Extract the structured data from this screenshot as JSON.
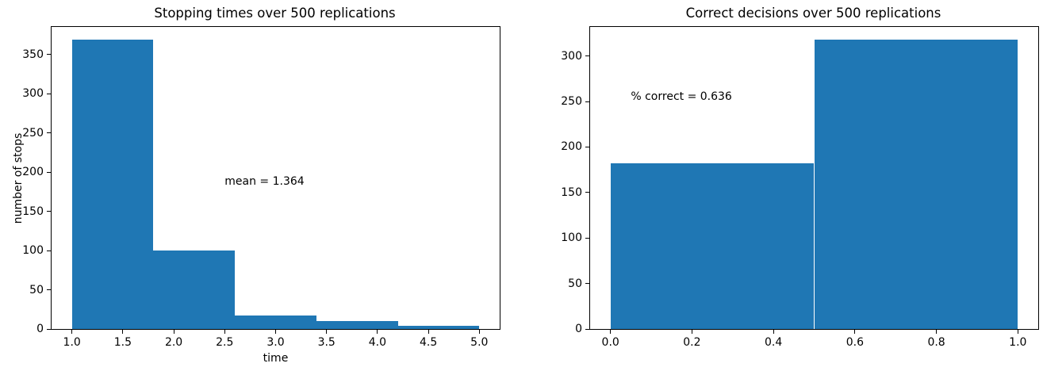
{
  "figure": {
    "background": "#ffffff",
    "bar_color": "#1f77b4",
    "text_color": "#000000",
    "axis_color": "#000000"
  },
  "chart_data": [
    {
      "type": "bar",
      "subtype": "histogram",
      "title": "Stopping times over 500 replications",
      "xlabel": "time",
      "ylabel": "number of stops",
      "bin_edges": [
        1.0,
        1.8,
        2.6,
        3.4,
        4.2,
        5.0
      ],
      "counts": [
        369,
        100,
        17,
        10,
        4
      ],
      "xlim": [
        0.8,
        5.2
      ],
      "ylim": [
        0,
        385
      ],
      "xtick_values": [
        1.0,
        1.5,
        2.0,
        2.5,
        3.0,
        3.5,
        4.0,
        4.5,
        5.0
      ],
      "xtick_labels": [
        "1.0",
        "1.5",
        "2.0",
        "2.5",
        "3.0",
        "3.5",
        "4.0",
        "4.5",
        "5.0"
      ],
      "ytick_values": [
        0,
        50,
        100,
        150,
        200,
        250,
        300,
        350
      ],
      "ytick_labels": [
        "0",
        "50",
        "100",
        "150",
        "200",
        "250",
        "300",
        "350"
      ],
      "grid": false,
      "legend": null,
      "annotation": {
        "text": "mean = 1.364",
        "x": 2.5,
        "y": 188
      }
    },
    {
      "type": "bar",
      "subtype": "histogram",
      "title": "Correct decisions over 500 replications",
      "xlabel": "",
      "ylabel": "",
      "bin_edges": [
        0.0,
        0.5,
        1.0
      ],
      "counts": [
        182,
        318
      ],
      "xlim": [
        -0.05,
        1.05
      ],
      "ylim": [
        0,
        332
      ],
      "xtick_values": [
        0.0,
        0.2,
        0.4,
        0.6,
        0.8,
        1.0
      ],
      "xtick_labels": [
        "0.0",
        "0.2",
        "0.4",
        "0.6",
        "0.8",
        "1.0"
      ],
      "ytick_values": [
        0,
        50,
        100,
        150,
        200,
        250,
        300
      ],
      "ytick_labels": [
        "0",
        "50",
        "100",
        "150",
        "200",
        "250",
        "300"
      ],
      "grid": false,
      "legend": null,
      "annotation": {
        "text": "% correct = 0.636",
        "x": 0.05,
        "y": 255
      }
    }
  ]
}
